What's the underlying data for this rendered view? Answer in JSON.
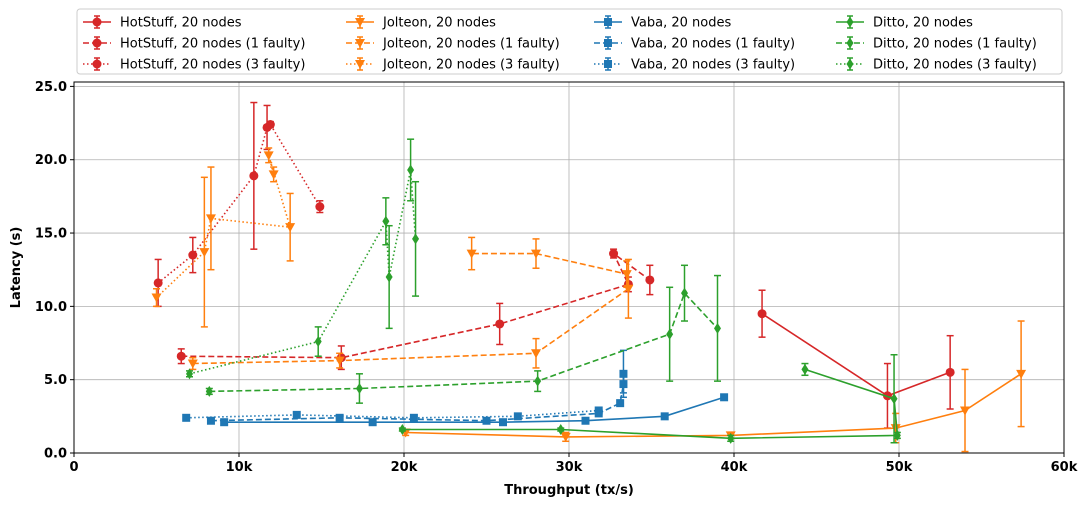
{
  "chart_data": {
    "type": "line",
    "xlabel": "Throughput (tx/s)",
    "ylabel": "Latency (s)",
    "xlim": [
      0,
      60000
    ],
    "ylim": [
      0,
      25.3
    ],
    "xticks": [
      0,
      10000,
      20000,
      30000,
      40000,
      50000,
      60000
    ],
    "xtick_labels": [
      "0",
      "10k",
      "20k",
      "30k",
      "40k",
      "50k",
      "60k"
    ],
    "yticks": [
      0,
      5,
      10,
      15,
      20,
      25
    ],
    "ytick_labels": [
      "0.0",
      "5.0",
      "10.0",
      "15.0",
      "20.0",
      "25.0"
    ],
    "grid": true,
    "legend_position": "top",
    "series": [
      {
        "name": "HotStuff, 20 nodes",
        "color": "#d62728",
        "linestyle": "solid",
        "marker": "circle",
        "points": [
          [
            41700,
            9.5,
            1.6
          ],
          [
            49300,
            3.9,
            2.2
          ],
          [
            53100,
            5.5,
            2.5
          ]
        ]
      },
      {
        "name": "HotStuff, 20 nodes (1 faulty)",
        "color": "#d62728",
        "linestyle": "dashed",
        "marker": "circle",
        "points": [
          [
            6500,
            6.6,
            0.5
          ],
          [
            16200,
            6.5,
            0.8
          ],
          [
            25800,
            8.8,
            1.4
          ],
          [
            33600,
            11.5,
            0.5
          ],
          [
            32700,
            13.6,
            0.3
          ],
          [
            34900,
            11.8,
            1.0
          ]
        ]
      },
      {
        "name": "HotStuff, 20 nodes (3 faulty)",
        "color": "#d62728",
        "linestyle": "dotted",
        "marker": "circle",
        "points": [
          [
            5100,
            11.6,
            1.6
          ],
          [
            7200,
            13.5,
            1.2
          ],
          [
            10900,
            18.9,
            5.0
          ],
          [
            11700,
            22.2,
            1.5
          ],
          [
            11900,
            22.4,
            0.2
          ],
          [
            14900,
            16.8,
            0.4
          ]
        ]
      },
      {
        "name": "Jolteon, 20 nodes",
        "color": "#ff7f0e",
        "linestyle": "solid",
        "marker": "triangle-down",
        "points": [
          [
            57400,
            5.4,
            3.6
          ],
          [
            54000,
            2.9,
            2.8
          ],
          [
            49800,
            1.7,
            1.0
          ],
          [
            39800,
            1.2,
            0.2
          ],
          [
            29800,
            1.1,
            0.3
          ],
          [
            20100,
            1.4,
            0.2
          ]
        ]
      },
      {
        "name": "Jolteon, 20 nodes (1 faulty)",
        "color": "#ff7f0e",
        "linestyle": "dashed",
        "marker": "triangle-down",
        "points": [
          [
            7200,
            6.1,
            0.4
          ],
          [
            16100,
            6.3,
            0.5
          ],
          [
            28000,
            6.8,
            1.0
          ],
          [
            33600,
            11.2,
            2.0
          ],
          [
            33500,
            12.2,
            0.9
          ],
          [
            28000,
            13.6,
            1.0
          ],
          [
            24100,
            13.6,
            1.1
          ]
        ]
      },
      {
        "name": "Jolteon, 20 nodes (3 faulty)",
        "color": "#ff7f0e",
        "linestyle": "dotted",
        "marker": "triangle-down",
        "points": [
          [
            5000,
            10.6,
            0.6
          ],
          [
            7900,
            13.7,
            5.1
          ],
          [
            8300,
            16.0,
            3.5
          ],
          [
            13100,
            15.4,
            2.3
          ],
          [
            11800,
            20.3,
            0.5
          ],
          [
            12100,
            19.0,
            0.5
          ]
        ]
      },
      {
        "name": "Vaba, 20 nodes",
        "color": "#1f77b4",
        "linestyle": "solid",
        "marker": "square",
        "points": [
          [
            9100,
            2.1,
            0.1
          ],
          [
            18100,
            2.1,
            0.1
          ],
          [
            26000,
            2.1,
            0.1
          ],
          [
            31000,
            2.2,
            0.1
          ],
          [
            35800,
            2.5,
            0.1
          ],
          [
            39400,
            3.8,
            0.1
          ]
        ]
      },
      {
        "name": "Vaba, 20 nodes (1 faulty)",
        "color": "#1f77b4",
        "linestyle": "dashed",
        "marker": "square",
        "points": [
          [
            8300,
            2.2,
            0.1
          ],
          [
            16100,
            2.4,
            0.1
          ],
          [
            25000,
            2.2,
            0.1
          ],
          [
            31800,
            2.7,
            0.1
          ],
          [
            33100,
            3.4,
            0.2
          ],
          [
            33300,
            4.7,
            0.6
          ],
          [
            33300,
            5.4,
            1.6
          ]
        ]
      },
      {
        "name": "Vaba, 20 nodes (3 faulty)",
        "color": "#1f77b4",
        "linestyle": "dotted",
        "marker": "square",
        "points": [
          [
            6800,
            2.4,
            0.1
          ],
          [
            13500,
            2.6,
            0.1
          ],
          [
            20600,
            2.4,
            0.1
          ],
          [
            26900,
            2.5,
            0.1
          ],
          [
            31800,
            2.9,
            0.1
          ]
        ]
      },
      {
        "name": "Ditto, 20 nodes",
        "color": "#2ca02c",
        "linestyle": "solid",
        "marker": "diamond",
        "points": [
          [
            44300,
            5.7,
            0.4
          ],
          [
            49700,
            3.7,
            3.0
          ],
          [
            49900,
            1.2,
            0.2
          ],
          [
            39800,
            1.0,
            0.2
          ],
          [
            29500,
            1.6,
            0.1
          ],
          [
            19900,
            1.6,
            0.1
          ]
        ]
      },
      {
        "name": "Ditto, 20 nodes (1 faulty)",
        "color": "#2ca02c",
        "linestyle": "dashed",
        "marker": "diamond",
        "points": [
          [
            8200,
            4.2,
            0.2
          ],
          [
            17300,
            4.4,
            1.0
          ],
          [
            28100,
            4.9,
            0.7
          ],
          [
            36100,
            8.1,
            3.2
          ],
          [
            37000,
            10.9,
            1.9
          ],
          [
            39000,
            8.5,
            3.6
          ]
        ]
      },
      {
        "name": "Ditto, 20 nodes (3 faulty)",
        "color": "#2ca02c",
        "linestyle": "dotted",
        "marker": "diamond",
        "points": [
          [
            7000,
            5.4,
            0.2
          ],
          [
            14800,
            7.6,
            1.0
          ],
          [
            18900,
            15.8,
            1.6
          ],
          [
            19100,
            12.0,
            3.5
          ],
          [
            20400,
            19.3,
            2.1
          ],
          [
            20700,
            14.6,
            3.9
          ]
        ]
      }
    ]
  }
}
